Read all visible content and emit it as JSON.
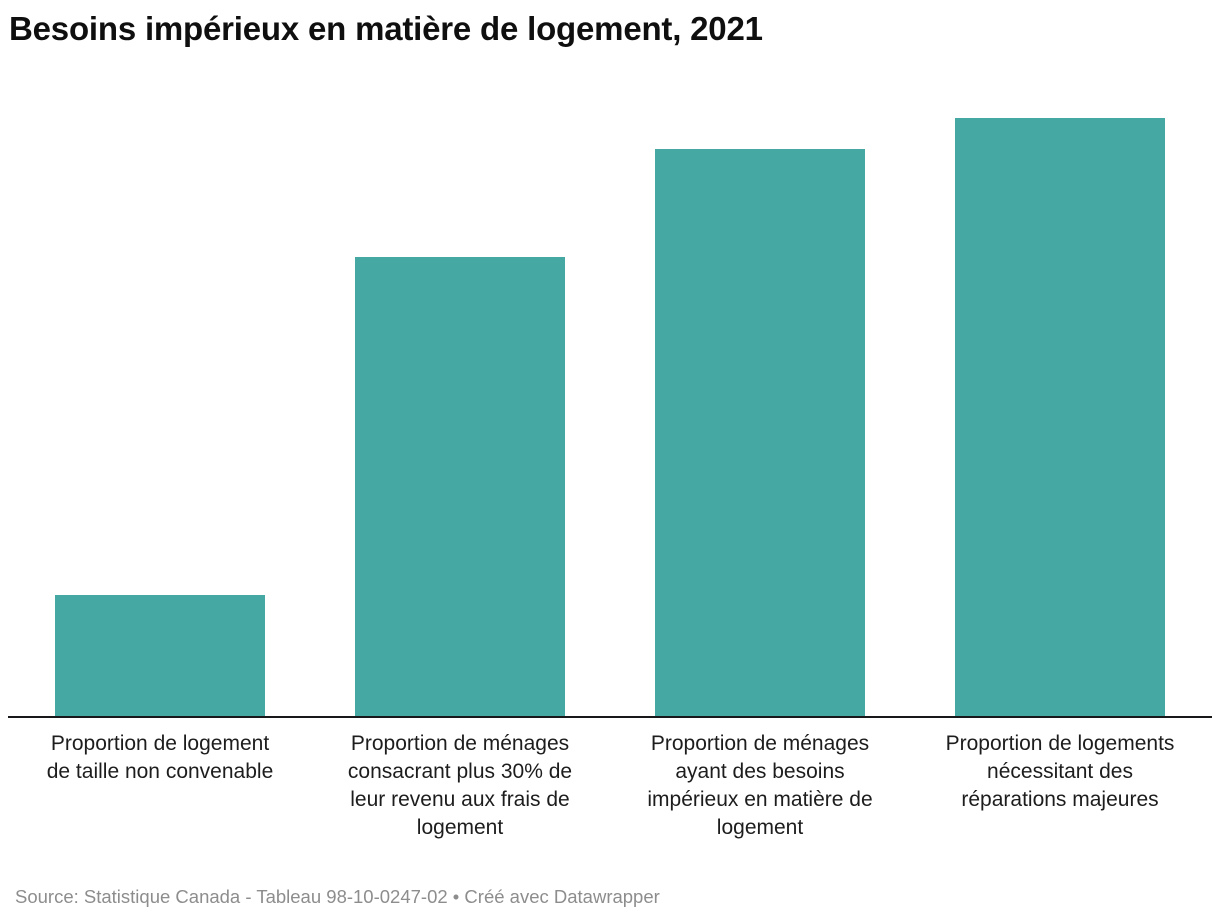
{
  "header": {
    "title": "Besoins impérieux en matière de logement, 2021"
  },
  "chart_data": {
    "type": "bar",
    "title": "Besoins impérieux en matière de logement, 2021",
    "categories": [
      "Proportion de logement de taille non convenable",
      "Proportion de ménages consacrant plus 30% de leur revenu aux frais de logement",
      "Proportion de ménages ayant des besoins impérieux en matière de logement",
      "Proportion de logements nécessitant des réparations majeures"
    ],
    "category_lines": [
      [
        "Proportion de logement",
        "de taille non convenable"
      ],
      [
        "Proportion de ménages",
        "consacrant plus 30% de",
        "leur revenu aux frais de",
        "logement"
      ],
      [
        "Proportion de ménages",
        "ayant des besoins",
        "impérieux en matière de",
        "logement"
      ],
      [
        "Proportion de logements",
        "nécessitant des",
        "réparations majeures"
      ]
    ],
    "values_pct_of_max": [
      20.2,
      76.8,
      94.8,
      100
    ],
    "value_axis_visible": false,
    "value_labels_visible": false,
    "grid": false,
    "xlabel": "",
    "ylabel": "",
    "bar_color": "#45a8a3",
    "axis_color": "#18181a",
    "legend": "none"
  },
  "footer": {
    "source_text": "Source: Statistique Canada - Tableau 98-10-0247-02",
    "separator": "•",
    "credit_text": "Créé avec Datawrapper"
  }
}
